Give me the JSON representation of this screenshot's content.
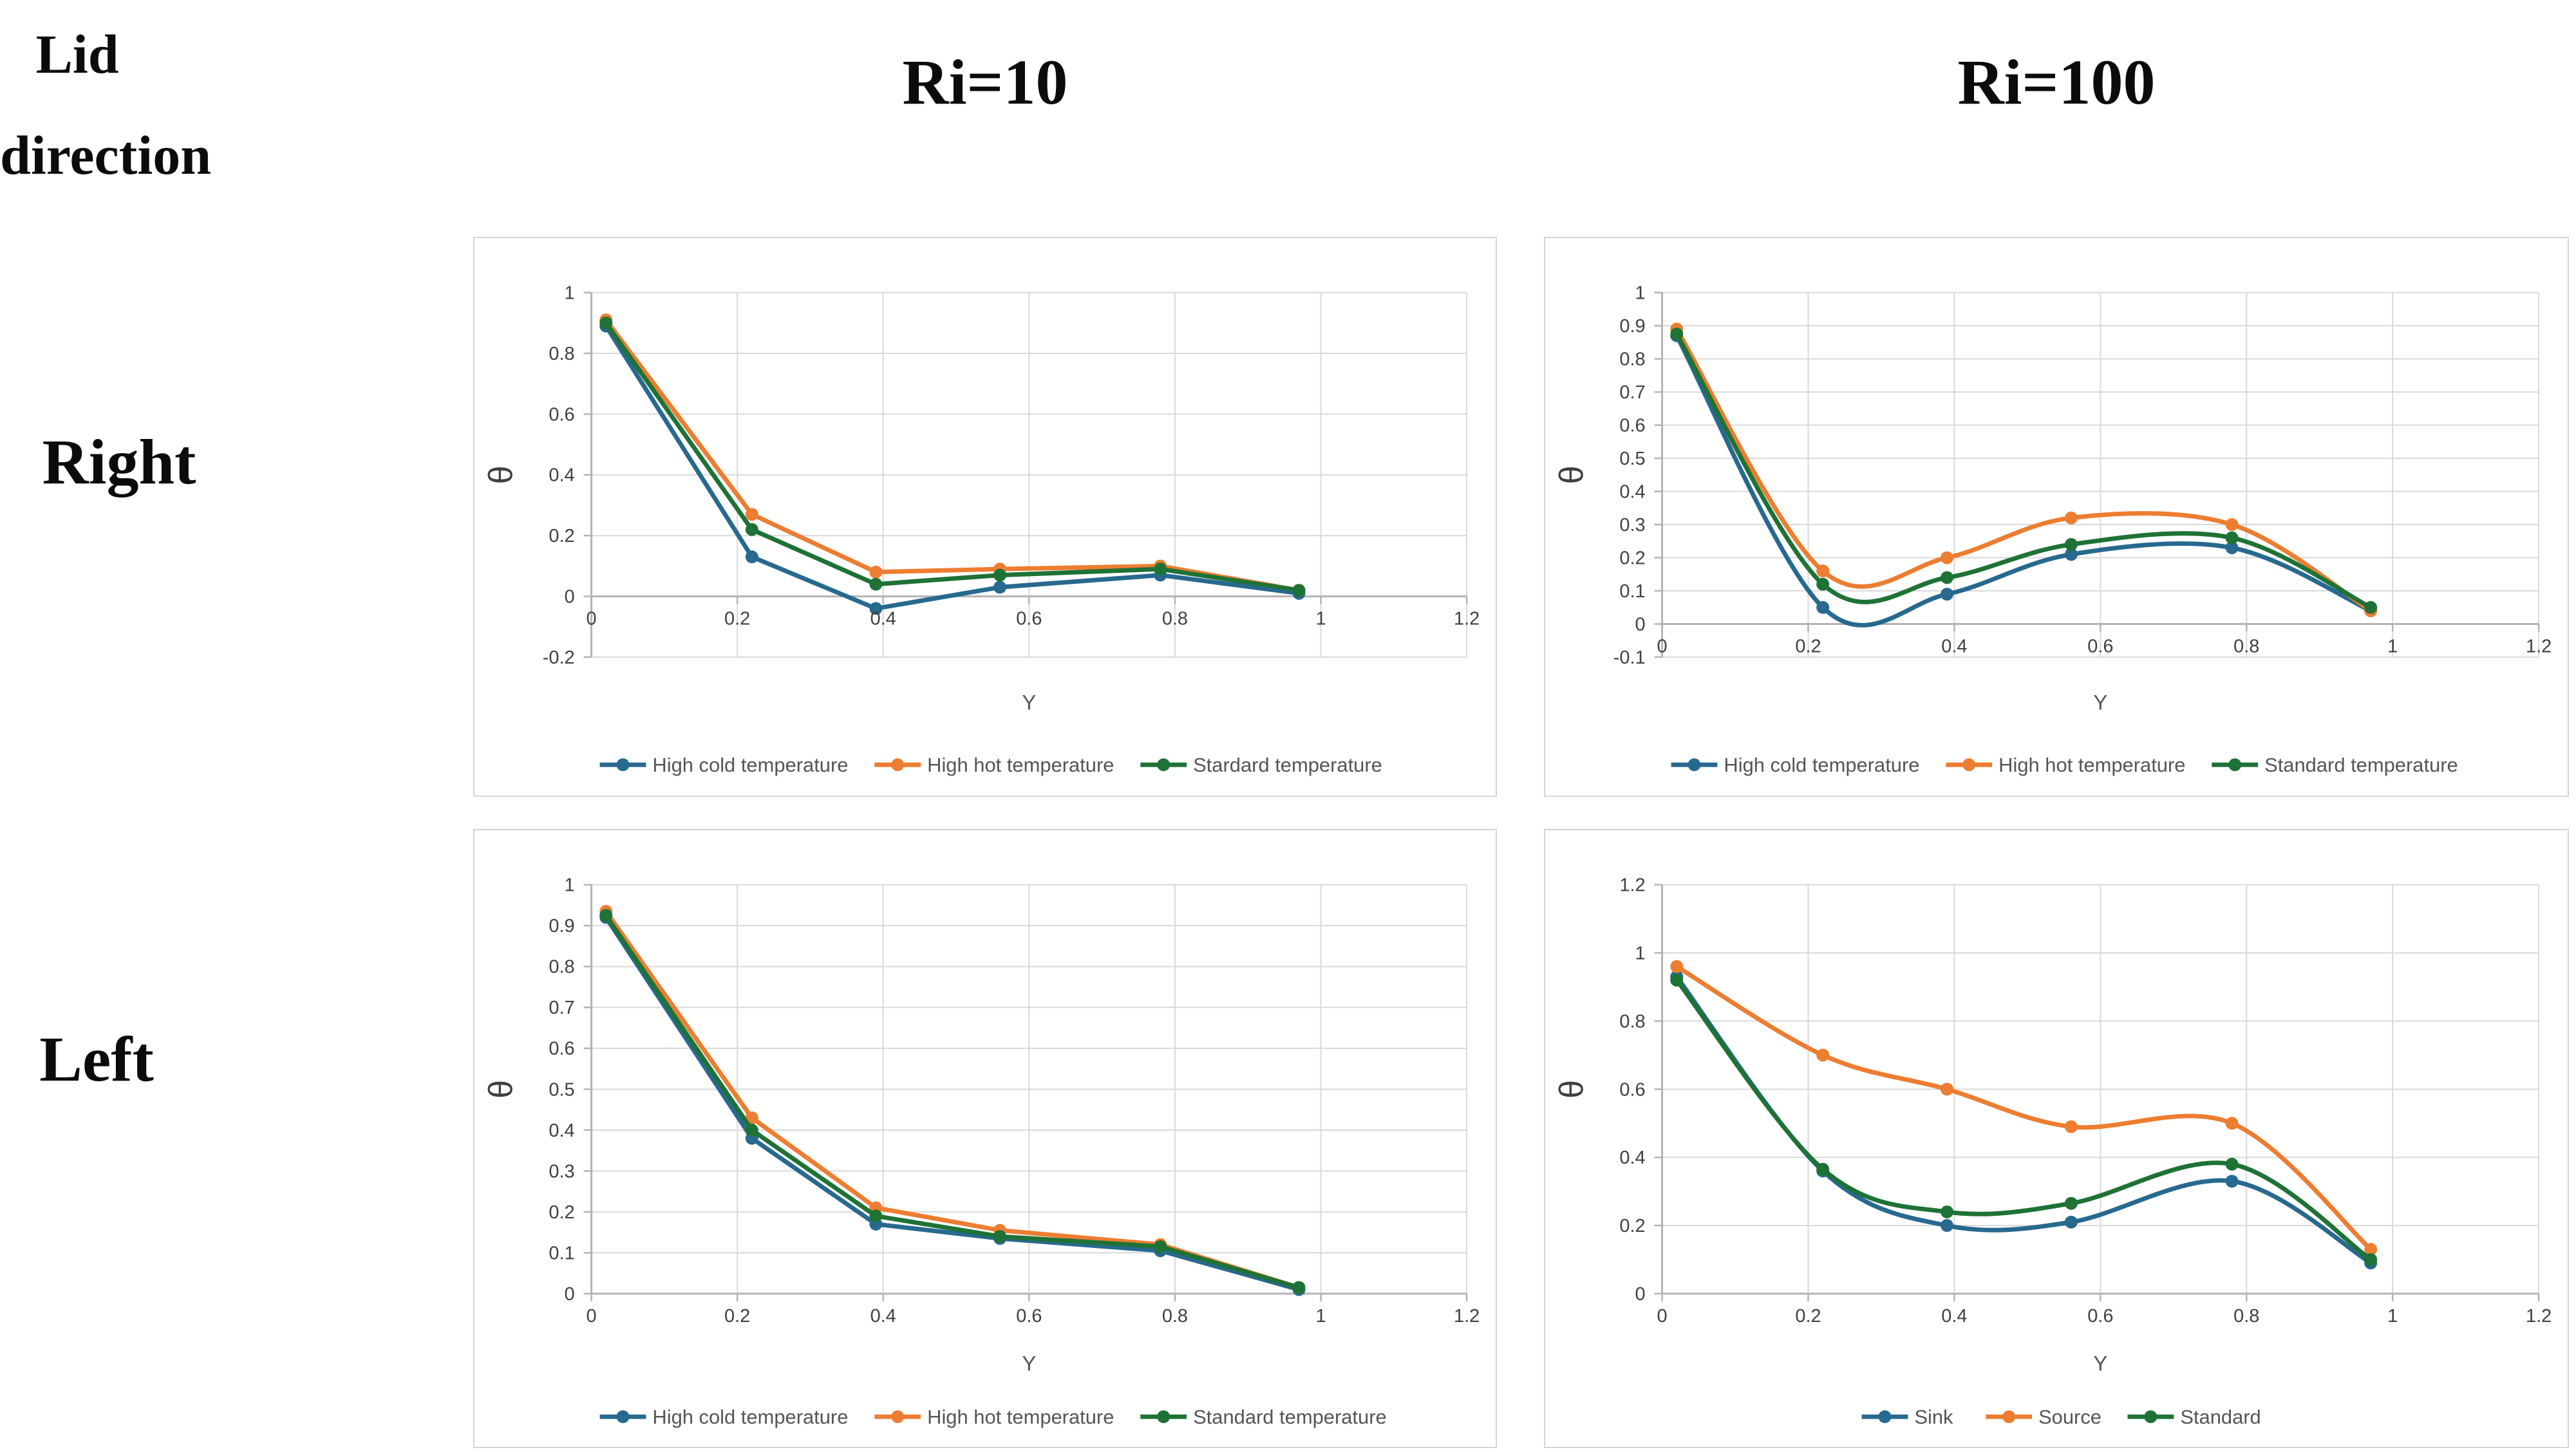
{
  "page": {
    "corner_label": "Lid\ndirection",
    "col_headers": [
      "Ri=10",
      "Ri=100"
    ],
    "row_labels": [
      "Right",
      "Left"
    ]
  },
  "colors": {
    "blue": "#27698F",
    "orange": "#ED7D31",
    "green": "#1E7235",
    "gridline": "#D9D9D9",
    "axis_line": "#B3B3B3",
    "tick_text": "#3F3F3F",
    "chart_text": "#555555"
  },
  "chart_data": [
    {
      "type": "line",
      "row": "Right",
      "col": "Ri=10",
      "xlabel": "Y",
      "ylabel": "θ",
      "x": [
        0.02,
        0.22,
        0.39,
        0.56,
        0.78,
        0.97
      ],
      "xlim": [
        0,
        1.2
      ],
      "xticks": [
        0,
        0.2,
        0.4,
        0.6,
        0.8,
        1,
        1.2
      ],
      "ylim": [
        -0.2,
        1
      ],
      "yticks": [
        1,
        0.8,
        0.6,
        0.4,
        0.2,
        0,
        -0.2
      ],
      "smooth": false,
      "x_labels_at": "zero",
      "grid": true,
      "legend_position": "bottom",
      "series": [
        {
          "name": "High cold temperature",
          "color": "#27698F",
          "values": [
            0.89,
            0.13,
            -0.04,
            0.03,
            0.07,
            0.01
          ]
        },
        {
          "name": "High hot temperature",
          "color": "#ED7D31",
          "values": [
            0.91,
            0.27,
            0.08,
            0.09,
            0.1,
            0.02
          ]
        },
        {
          "name": "Stardard temperature",
          "color": "#1E7235",
          "values": [
            0.9,
            0.22,
            0.04,
            0.07,
            0.09,
            0.02
          ]
        }
      ]
    },
    {
      "type": "line",
      "row": "Right",
      "col": "Ri=100",
      "xlabel": "Y",
      "ylabel": "θ",
      "x": [
        0.02,
        0.22,
        0.39,
        0.56,
        0.78,
        0.97
      ],
      "xlim": [
        0,
        1.2
      ],
      "xticks": [
        0,
        0.2,
        0.4,
        0.6,
        0.8,
        1,
        1.2
      ],
      "ylim": [
        -0.1,
        1
      ],
      "yticks": [
        1,
        0.9,
        0.8,
        0.7,
        0.6,
        0.5,
        0.4,
        0.3,
        0.2,
        0.1,
        0,
        -0.1
      ],
      "smooth": true,
      "x_labels_at": "zero",
      "grid": true,
      "legend_position": "bottom",
      "series": [
        {
          "name": "High cold temperature",
          "color": "#27698F",
          "values": [
            0.87,
            0.05,
            0.09,
            0.21,
            0.23,
            0.04
          ]
        },
        {
          "name": "High hot temperature",
          "color": "#ED7D31",
          "values": [
            0.89,
            0.16,
            0.2,
            0.32,
            0.3,
            0.04
          ]
        },
        {
          "name": "Standard temperature",
          "color": "#1E7235",
          "values": [
            0.875,
            0.12,
            0.14,
            0.24,
            0.26,
            0.05
          ]
        }
      ]
    },
    {
      "type": "line",
      "row": "Left",
      "col": "Ri=10",
      "xlabel": "Y",
      "ylabel": "θ",
      "x": [
        0.02,
        0.22,
        0.39,
        0.56,
        0.78,
        0.97
      ],
      "xlim": [
        0,
        1.2
      ],
      "xticks": [
        0,
        0.2,
        0.4,
        0.6,
        0.8,
        1,
        1.2
      ],
      "ylim": [
        0,
        1
      ],
      "yticks": [
        1,
        0.9,
        0.8,
        0.7,
        0.6,
        0.5,
        0.4,
        0.3,
        0.2,
        0.1,
        0
      ],
      "smooth": false,
      "x_labels_at": "bottom",
      "grid": true,
      "legend_position": "bottom",
      "series": [
        {
          "name": "High cold temperature",
          "color": "#27698F",
          "values": [
            0.92,
            0.38,
            0.17,
            0.135,
            0.105,
            0.01
          ]
        },
        {
          "name": "High hot temperature",
          "color": "#ED7D31",
          "values": [
            0.935,
            0.43,
            0.21,
            0.155,
            0.12,
            0.015
          ]
        },
        {
          "name": "Standard temperature",
          "color": "#1E7235",
          "values": [
            0.925,
            0.4,
            0.19,
            0.14,
            0.115,
            0.015
          ]
        }
      ]
    },
    {
      "type": "line",
      "row": "Left",
      "col": "Ri=100",
      "xlabel": "Y",
      "ylabel": "θ",
      "x": [
        0.02,
        0.22,
        0.39,
        0.56,
        0.78,
        0.97
      ],
      "xlim": [
        0,
        1.2
      ],
      "xticks": [
        0,
        0.2,
        0.4,
        0.6,
        0.8,
        1,
        1.2
      ],
      "ylim": [
        0,
        1.2
      ],
      "yticks": [
        1.2,
        1,
        0.8,
        0.6,
        0.4,
        0.2,
        0
      ],
      "smooth": true,
      "x_labels_at": "bottom",
      "grid": true,
      "legend_position": "bottom",
      "series": [
        {
          "name": "Sink",
          "color": "#27698F",
          "values": [
            0.93,
            0.36,
            0.2,
            0.21,
            0.33,
            0.09
          ]
        },
        {
          "name": "Source",
          "color": "#ED7D31",
          "values": [
            0.96,
            0.7,
            0.6,
            0.49,
            0.5,
            0.13
          ]
        },
        {
          "name": "Standard",
          "color": "#1E7235",
          "values": [
            0.92,
            0.365,
            0.24,
            0.265,
            0.38,
            0.1
          ]
        }
      ]
    }
  ]
}
